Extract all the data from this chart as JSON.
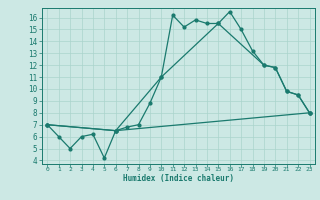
{
  "xlabel": "Humidex (Indice chaleur)",
  "bg_color": "#cce8e4",
  "line_color": "#1a7a6e",
  "grid_color": "#aad4cc",
  "xlim": [
    -0.5,
    23.5
  ],
  "ylim": [
    3.7,
    16.8
  ],
  "xticks": [
    0,
    1,
    2,
    3,
    4,
    5,
    6,
    7,
    8,
    9,
    10,
    11,
    12,
    13,
    14,
    15,
    16,
    17,
    18,
    19,
    20,
    21,
    22,
    23
  ],
  "yticks": [
    4,
    5,
    6,
    7,
    8,
    9,
    10,
    11,
    12,
    13,
    14,
    15,
    16
  ],
  "line1_x": [
    0,
    1,
    2,
    3,
    4,
    5,
    6,
    7,
    8,
    9,
    10,
    11,
    12,
    13,
    14,
    15,
    16,
    17,
    18,
    19,
    20,
    21,
    22,
    23
  ],
  "line1_y": [
    7.0,
    6.0,
    5.0,
    6.0,
    6.2,
    4.2,
    6.5,
    6.8,
    7.0,
    8.8,
    11.0,
    16.2,
    15.2,
    15.8,
    15.5,
    15.5,
    16.5,
    15.0,
    13.2,
    12.0,
    11.8,
    9.8,
    9.5,
    8.0
  ],
  "line2_x": [
    0,
    6,
    10,
    15,
    19,
    20,
    21,
    22,
    23
  ],
  "line2_y": [
    7.0,
    6.5,
    11.0,
    15.5,
    12.0,
    11.8,
    9.8,
    9.5,
    8.0
  ],
  "line3_x": [
    0,
    6,
    23
  ],
  "line3_y": [
    7.0,
    6.5,
    8.0
  ]
}
